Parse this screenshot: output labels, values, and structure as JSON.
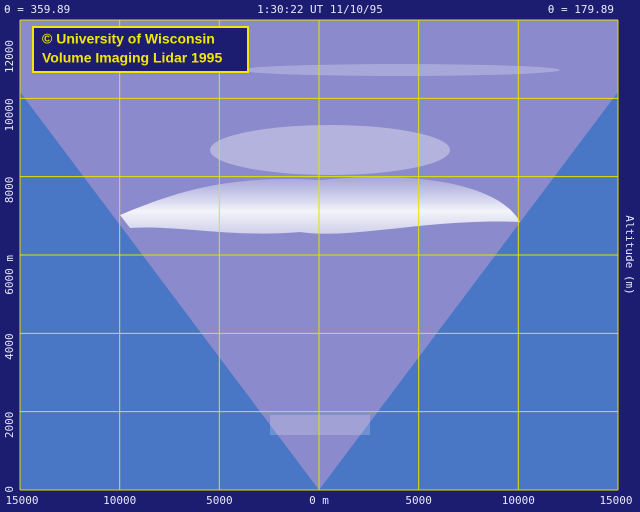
{
  "chart_data": {
    "type": "lidar_scan",
    "title": "1:30:22 UT 11/10/95",
    "left_angle": "θ = 359.89",
    "right_angle": "θ = 179.89",
    "credit": [
      "© University of Wisconsin",
      "Volume Imaging Lidar  1995"
    ],
    "y_label": "Altitude (m)",
    "xlim": [
      -15000,
      15000
    ],
    "xticks": [
      {
        "value": -15000,
        "label": "15000"
      },
      {
        "value": -10000,
        "label": "10000"
      },
      {
        "value": -5000,
        "label": "5000"
      },
      {
        "value": 0,
        "label": "0 m"
      },
      {
        "value": 5000,
        "label": "5000"
      },
      {
        "value": 10000,
        "label": "10000"
      },
      {
        "value": 15000,
        "label": "15000"
      }
    ],
    "ylim": [
      0,
      12000
    ],
    "yticks": [
      0,
      2000,
      4000,
      {
        "value": 6000,
        "label": "6000 m"
      },
      8000,
      10000,
      12000
    ],
    "grid": true,
    "grid_color": "#e8e000"
  }
}
